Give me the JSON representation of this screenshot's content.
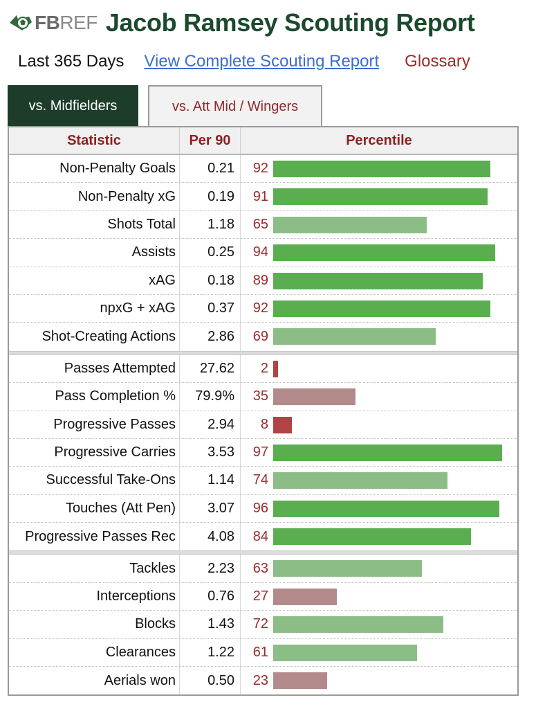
{
  "header": {
    "logo_fb": "FB",
    "logo_ref": "REF",
    "title": "Jacob Ramsey Scouting Report"
  },
  "subnav": {
    "period": "Last 365 Days",
    "complete_link": "View Complete Scouting Report",
    "glossary": "Glossary"
  },
  "tabs": [
    {
      "label": "vs. Midfielders",
      "active": true
    },
    {
      "label": "vs. Att Mid / Wingers",
      "active": false
    }
  ],
  "colors": {
    "title_green": "#1b4a2c",
    "tab_active_bg": "#1d3d2a",
    "header_red": "#8e2020",
    "pct_red": "#9b2a2a",
    "bar_high": "#5aae50",
    "bar_midhigh": "#8dbd87",
    "bar_midlow": "#b38a8c",
    "bar_low": "#b04343"
  },
  "table": {
    "columns": [
      "Statistic",
      "Per 90",
      "Percentile"
    ],
    "groups": [
      {
        "rows": [
          {
            "stat": "Non-Penalty Goals",
            "per90": "0.21",
            "percentile": 92
          },
          {
            "stat": "Non-Penalty xG",
            "per90": "0.19",
            "percentile": 91
          },
          {
            "stat": "Shots Total",
            "per90": "1.18",
            "percentile": 65
          },
          {
            "stat": "Assists",
            "per90": "0.25",
            "percentile": 94
          },
          {
            "stat": "xAG",
            "per90": "0.18",
            "percentile": 89
          },
          {
            "stat": "npxG + xAG",
            "per90": "0.37",
            "percentile": 92
          },
          {
            "stat": "Shot-Creating Actions",
            "per90": "2.86",
            "percentile": 69
          }
        ]
      },
      {
        "rows": [
          {
            "stat": "Passes Attempted",
            "per90": "27.62",
            "percentile": 2
          },
          {
            "stat": "Pass Completion %",
            "per90": "79.9%",
            "percentile": 35
          },
          {
            "stat": "Progressive Passes",
            "per90": "2.94",
            "percentile": 8
          },
          {
            "stat": "Progressive Carries",
            "per90": "3.53",
            "percentile": 97
          },
          {
            "stat": "Successful Take-Ons",
            "per90": "1.14",
            "percentile": 74
          },
          {
            "stat": "Touches (Att Pen)",
            "per90": "3.07",
            "percentile": 96
          },
          {
            "stat": "Progressive Passes Rec",
            "per90": "4.08",
            "percentile": 84
          }
        ]
      },
      {
        "rows": [
          {
            "stat": "Tackles",
            "per90": "2.23",
            "percentile": 63
          },
          {
            "stat": "Interceptions",
            "per90": "0.76",
            "percentile": 27
          },
          {
            "stat": "Blocks",
            "per90": "1.43",
            "percentile": 72
          },
          {
            "stat": "Clearances",
            "per90": "1.22",
            "percentile": 61
          },
          {
            "stat": "Aerials won",
            "per90": "0.50",
            "percentile": 23
          }
        ]
      }
    ]
  }
}
